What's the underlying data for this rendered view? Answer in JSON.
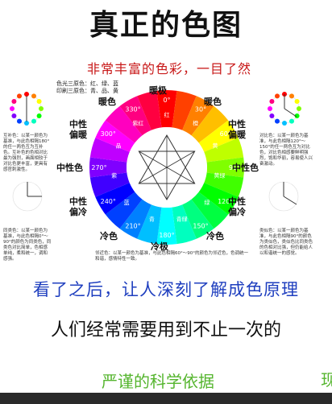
{
  "title": "真正的色图",
  "subtitle": "非常丰富的色彩，一目了然",
  "legend": {
    "light_primaries": "色光三原色：红、绿、蓝",
    "print_primaries": "印刷三原色：青、品、黄"
  },
  "wheel": {
    "labels": {
      "warm_extreme": "暖极",
      "cold_extreme": "冷极",
      "warm_left": "暖色",
      "warm_right": "暖色",
      "neutral_warm_left": "中性\n偏暖",
      "neutral_warm_right": "中性\n偏暖",
      "neutral_left": "中性色",
      "neutral_right": "中性色",
      "neutral_cold_left": "中性\n偏冷",
      "neutral_cold_right": "中性\n偏冷",
      "cold_left": "冷色",
      "cold_right": "冷色"
    },
    "segment_names": [
      "红",
      "橙",
      "黄",
      "黄绿",
      "绿",
      "青绿",
      "青",
      "蓝",
      "紫",
      "品",
      "紫红"
    ],
    "degree_labels": [
      "0°",
      "30°",
      "60°",
      "90°",
      "120°",
      "150°",
      "180°",
      "210°",
      "240°",
      "270°",
      "300°",
      "330°"
    ],
    "segment_colors": [
      "#ff0000",
      "#ff4000",
      "#ff8000",
      "#ffbf00",
      "#ffff00",
      "#bfff00",
      "#80ff00",
      "#40ff00",
      "#00ff00",
      "#00ff40",
      "#00ff80",
      "#00ffbf",
      "#00ffff",
      "#00bfff",
      "#0080ff",
      "#0040ff",
      "#0000ff",
      "#4000ff",
      "#8000ff",
      "#bf00ff",
      "#ff00ff",
      "#ff00bf",
      "#ff0080",
      "#ff0040"
    ]
  },
  "lines": {
    "line1": "看了之后，让人深刻了解成色原理",
    "line2": "人们经常需要用到不止一次的",
    "line3": "严谨的科学依据",
    "line3_cut": "现"
  },
  "notes": {
    "left_top": "互补色：以某一颜色为基准，与此色相隔180°的任一两色互为互补色。互补色的色相对比最为强烈，画面相较于对比色更丰富，更具有感官刺激性。",
    "left_bottom": "同类色：以某一颜色为基准，与此色相隔0°～90°的颜色为同类色，同类色对比简单，色相感单纯，柔和统一，调和感强。",
    "right_top": "对比色：以某一颜色为基准，与此色相隔120°～150°的任一两色互为对比色，对比色相感要鲜明强烈，饱和华丽，容易使人兴奋激动。",
    "right_bottom": "类似色：以某一颜色为基准，与此色相隔90°的颜色为类似色，类似色比同类色的色相对比强，但仍能给人以和谐统一的感觉。",
    "center_bottom": "邻近色：以某一颜色为基准，与此色相隔60°～90°的颜色为邻近色，色调统一和谐，感情特性一致。"
  }
}
